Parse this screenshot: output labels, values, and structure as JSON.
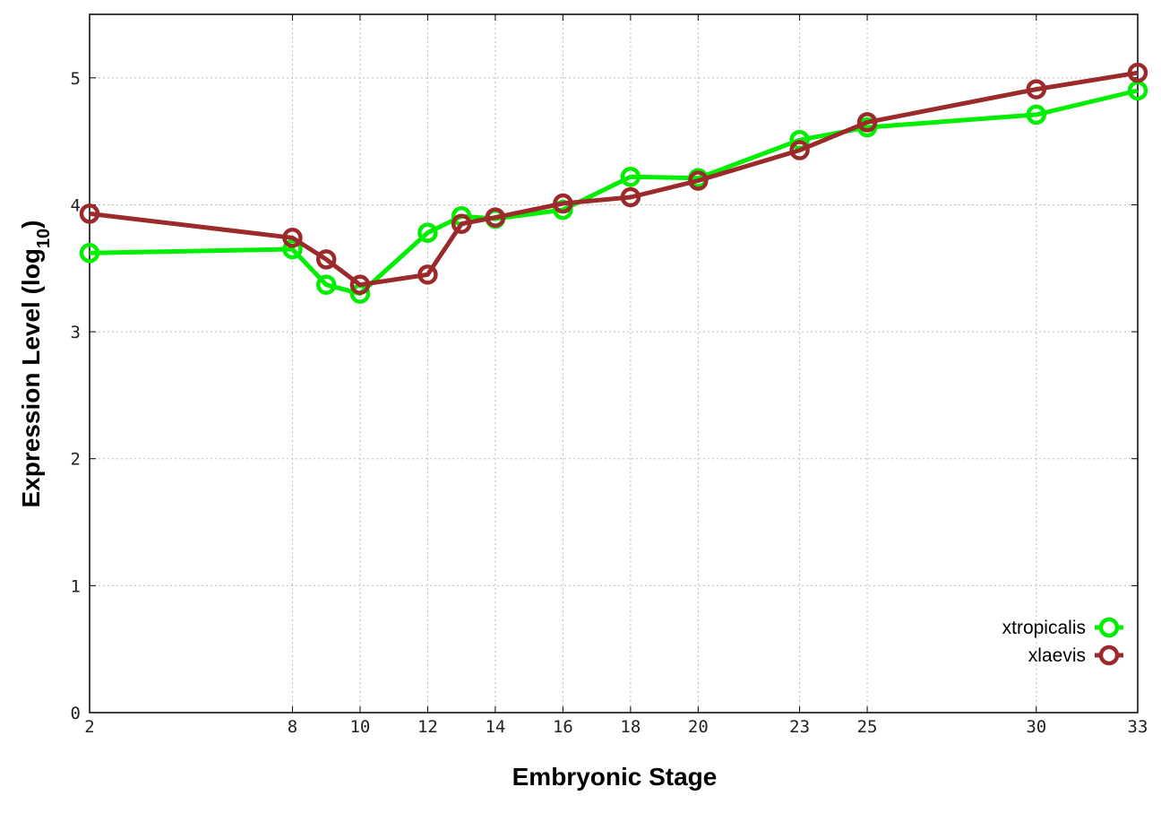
{
  "chart_data": {
    "type": "line",
    "xlabel": "Embryonic Stage",
    "ylabel_main": "Expression Level (log",
    "ylabel_sub": "10",
    "ylabel_close": ")",
    "xlim": [
      2,
      33
    ],
    "ylim": [
      0,
      5.5
    ],
    "x_ticks": [
      2,
      8,
      10,
      12,
      14,
      16,
      18,
      20,
      23,
      25,
      30,
      33
    ],
    "y_ticks": [
      0,
      1,
      2,
      3,
      4,
      5
    ],
    "grid": true,
    "legend_position": "bottom-right",
    "x": [
      2,
      8,
      9,
      10,
      12,
      13,
      14,
      16,
      18,
      20,
      23,
      25,
      30,
      33
    ],
    "series": [
      {
        "name": "xtropicalis",
        "color": "#00ee00",
        "values": [
          3.62,
          3.65,
          3.37,
          3.3,
          3.78,
          3.91,
          3.89,
          3.96,
          4.22,
          4.21,
          4.51,
          4.61,
          4.71,
          4.9
        ]
      },
      {
        "name": "xlaevis",
        "color": "#9b2a2a",
        "values": [
          3.93,
          3.74,
          3.57,
          3.37,
          3.45,
          3.85,
          3.9,
          4.01,
          4.06,
          4.19,
          4.43,
          4.65,
          4.91,
          5.04
        ]
      }
    ]
  }
}
